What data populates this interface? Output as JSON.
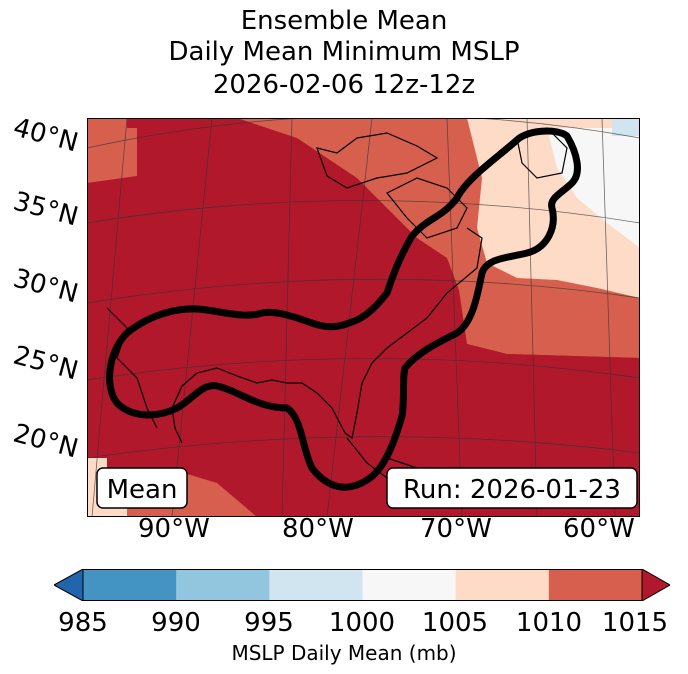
{
  "title": {
    "line1": "Ensemble Mean",
    "line2": "Daily Mean Minimum MSLP",
    "line3": "2026-02-06 12z-12z"
  },
  "map": {
    "lat_labels": [
      "40°N",
      "35°N",
      "30°N",
      "25°N",
      "20°N"
    ],
    "lon_labels": [
      "90°W",
      "80°W",
      "70°W",
      "60°W"
    ],
    "mean_box": "Mean",
    "run_box": "Run: 2026-01-23",
    "colors": {
      "ocean_land_low": "#b2182b",
      "mid": "#d6604d",
      "light": "#fddbc7",
      "white": "#f7f7f7",
      "contour": "#000000"
    }
  },
  "colorbar": {
    "ticks": [
      "985",
      "990",
      "995",
      "1000",
      "1005",
      "1010",
      "1015"
    ],
    "colors": [
      "#2166ac",
      "#4393c3",
      "#92c5de",
      "#d1e5f0",
      "#f7f7f7",
      "#fddbc7",
      "#d6604d",
      "#b2182b"
    ],
    "label": "MSLP Daily Mean (mb)"
  }
}
